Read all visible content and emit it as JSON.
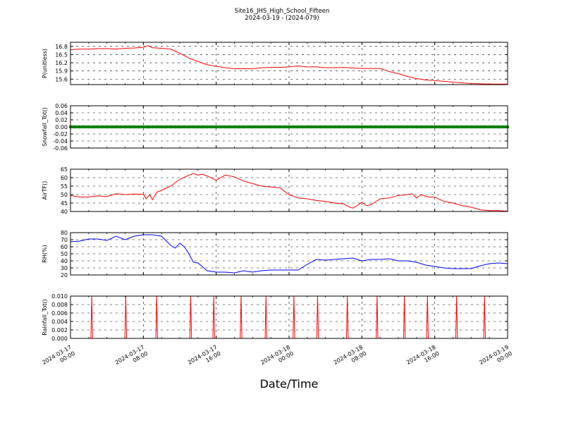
{
  "figure": {
    "title": "Site16_JHS_High_School_Fifteen",
    "subtitle": "2024-03-19 - (2024-079)",
    "xlabel": "Date/Time",
    "x_ticks": [
      "2024-03-17\n00:00",
      "2024-03-17\n08:00",
      "2024-03-17\n16:00",
      "2024-03-18\n00:00",
      "2024-03-18\n08:00",
      "2024-03-18\n16:00",
      "2024-03-19\n00:00"
    ],
    "x_range_hours": [
      0,
      48
    ],
    "grid": true
  },
  "chart_data": [
    {
      "type": "line",
      "ylabel": "P(unitless)",
      "ylim": [
        15.4,
        16.95
      ],
      "yticks": [
        15.6,
        15.9,
        16.2,
        16.5,
        16.8
      ],
      "ytick_format": 1,
      "color": "#ff0000",
      "x_hours": [
        0,
        1,
        2,
        3,
        4,
        5,
        6,
        7,
        8,
        8.5,
        9,
        10,
        11,
        12,
        13,
        14,
        15,
        16,
        17,
        18,
        19,
        20,
        21,
        22,
        23,
        24,
        25,
        26,
        27,
        28,
        29,
        30,
        31,
        32,
        33,
        34,
        35,
        36,
        37,
        38,
        39,
        40,
        41,
        42,
        43,
        44,
        45,
        46,
        47,
        48
      ],
      "values": [
        16.68,
        16.7,
        16.7,
        16.72,
        16.72,
        16.7,
        16.73,
        16.74,
        16.77,
        16.83,
        16.75,
        16.73,
        16.7,
        16.55,
        16.37,
        16.25,
        16.13,
        16.07,
        16.02,
        15.98,
        15.98,
        15.98,
        16.02,
        16.03,
        16.03,
        16.05,
        16.08,
        16.05,
        16.05,
        16.02,
        16.02,
        16.03,
        16.01,
        15.99,
        15.99,
        15.99,
        15.88,
        15.8,
        15.7,
        15.62,
        15.57,
        15.55,
        15.52,
        15.49,
        15.46,
        15.44,
        15.43,
        15.42,
        15.42,
        15.42
      ]
    },
    {
      "type": "scatter",
      "ylabel": "Snowfall_Tot()",
      "ylim": [
        -0.06,
        0.06
      ],
      "yticks": [
        -0.06,
        -0.04,
        -0.02,
        0.0,
        0.02,
        0.04,
        0.06
      ],
      "ytick_format": 2,
      "color": "#008000",
      "x_range_hours": [
        0,
        48
      ],
      "constant_value": 0.0
    },
    {
      "type": "line",
      "ylabel": "AirTF()",
      "ylim": [
        40,
        65
      ],
      "yticks": [
        40,
        45,
        50,
        55,
        60,
        65
      ],
      "ytick_format": 0,
      "color": "#ff0000",
      "x_hours": [
        0,
        1,
        2,
        3,
        4,
        5,
        6,
        7,
        8,
        8.3,
        8.7,
        9,
        9.5,
        10,
        11,
        12,
        13,
        13.5,
        14,
        14.5,
        15,
        16,
        17,
        18,
        19,
        20,
        21,
        22,
        23,
        24,
        25,
        26,
        27,
        28,
        29,
        30,
        30.7,
        31,
        31.5,
        32,
        32.5,
        33,
        34,
        35,
        36,
        37,
        37.5,
        38,
        38.5,
        39,
        39.5,
        40,
        41,
        42,
        43,
        44,
        45,
        46,
        47,
        48
      ],
      "values": [
        49.5,
        48.6,
        48.6,
        49.2,
        48.8,
        50.5,
        50.0,
        50.3,
        50.2,
        47.5,
        50.0,
        47.0,
        51.5,
        52.5,
        55.0,
        59.0,
        61.5,
        62.5,
        61.5,
        62.0,
        61.0,
        58.5,
        61.5,
        60.5,
        58.0,
        56.5,
        55.0,
        54.5,
        54.0,
        50.0,
        48.0,
        47.5,
        46.5,
        46.0,
        45.0,
        44.5,
        42.5,
        42.0,
        43.5,
        45.5,
        43.5,
        44.0,
        47.5,
        48.0,
        49.5,
        50.0,
        50.5,
        48.0,
        50.0,
        49.0,
        48.5,
        48.5,
        46.0,
        45.0,
        43.5,
        42.5,
        41.0,
        40.5,
        40.5,
        40.2
      ]
    },
    {
      "type": "line",
      "ylabel": "RH(%)",
      "ylim": [
        20,
        80
      ],
      "yticks": [
        20,
        30,
        40,
        50,
        60,
        70,
        80
      ],
      "ytick_format": 0,
      "color": "#0000ff",
      "x_hours": [
        0,
        1,
        2,
        3,
        4,
        5,
        6,
        7,
        8,
        9,
        10,
        11,
        11.5,
        12,
        12.5,
        13,
        13.5,
        14,
        15,
        16,
        17,
        18,
        19,
        20,
        21,
        22,
        23,
        24,
        25,
        26,
        27,
        28,
        29,
        30,
        31,
        32,
        33,
        34,
        35,
        36,
        37,
        38,
        39,
        40,
        41,
        42,
        43,
        44,
        45,
        46,
        47,
        48
      ],
      "values": [
        67,
        68,
        71,
        71,
        69,
        75,
        70,
        75,
        77,
        77,
        75,
        62,
        58,
        65,
        60,
        50,
        38,
        37,
        26,
        24,
        24,
        23,
        26,
        24,
        26,
        27,
        27,
        27,
        27,
        35,
        42,
        41,
        42,
        43,
        44,
        40,
        42,
        42,
        43,
        40,
        40,
        38,
        34,
        32,
        30,
        29,
        29,
        29,
        33,
        36,
        37,
        36
      ]
    },
    {
      "type": "line",
      "ylabel": "Rainfall_Tot()",
      "ylim": [
        0,
        0.01
      ],
      "yticks": [
        0.0,
        0.002,
        0.004,
        0.006,
        0.008,
        0.01
      ],
      "ytick_format": 3,
      "color": "#ff0000",
      "spike_hours": [
        3.5,
        9.1,
        14.2,
        19.8,
        23.6,
        28.1,
        32.2,
        36.8,
        40.7,
        45.6,
        50.5,
        55.0,
        58.8,
        63.6,
        68.2
      ],
      "x_hours": [],
      "values": []
    }
  ]
}
